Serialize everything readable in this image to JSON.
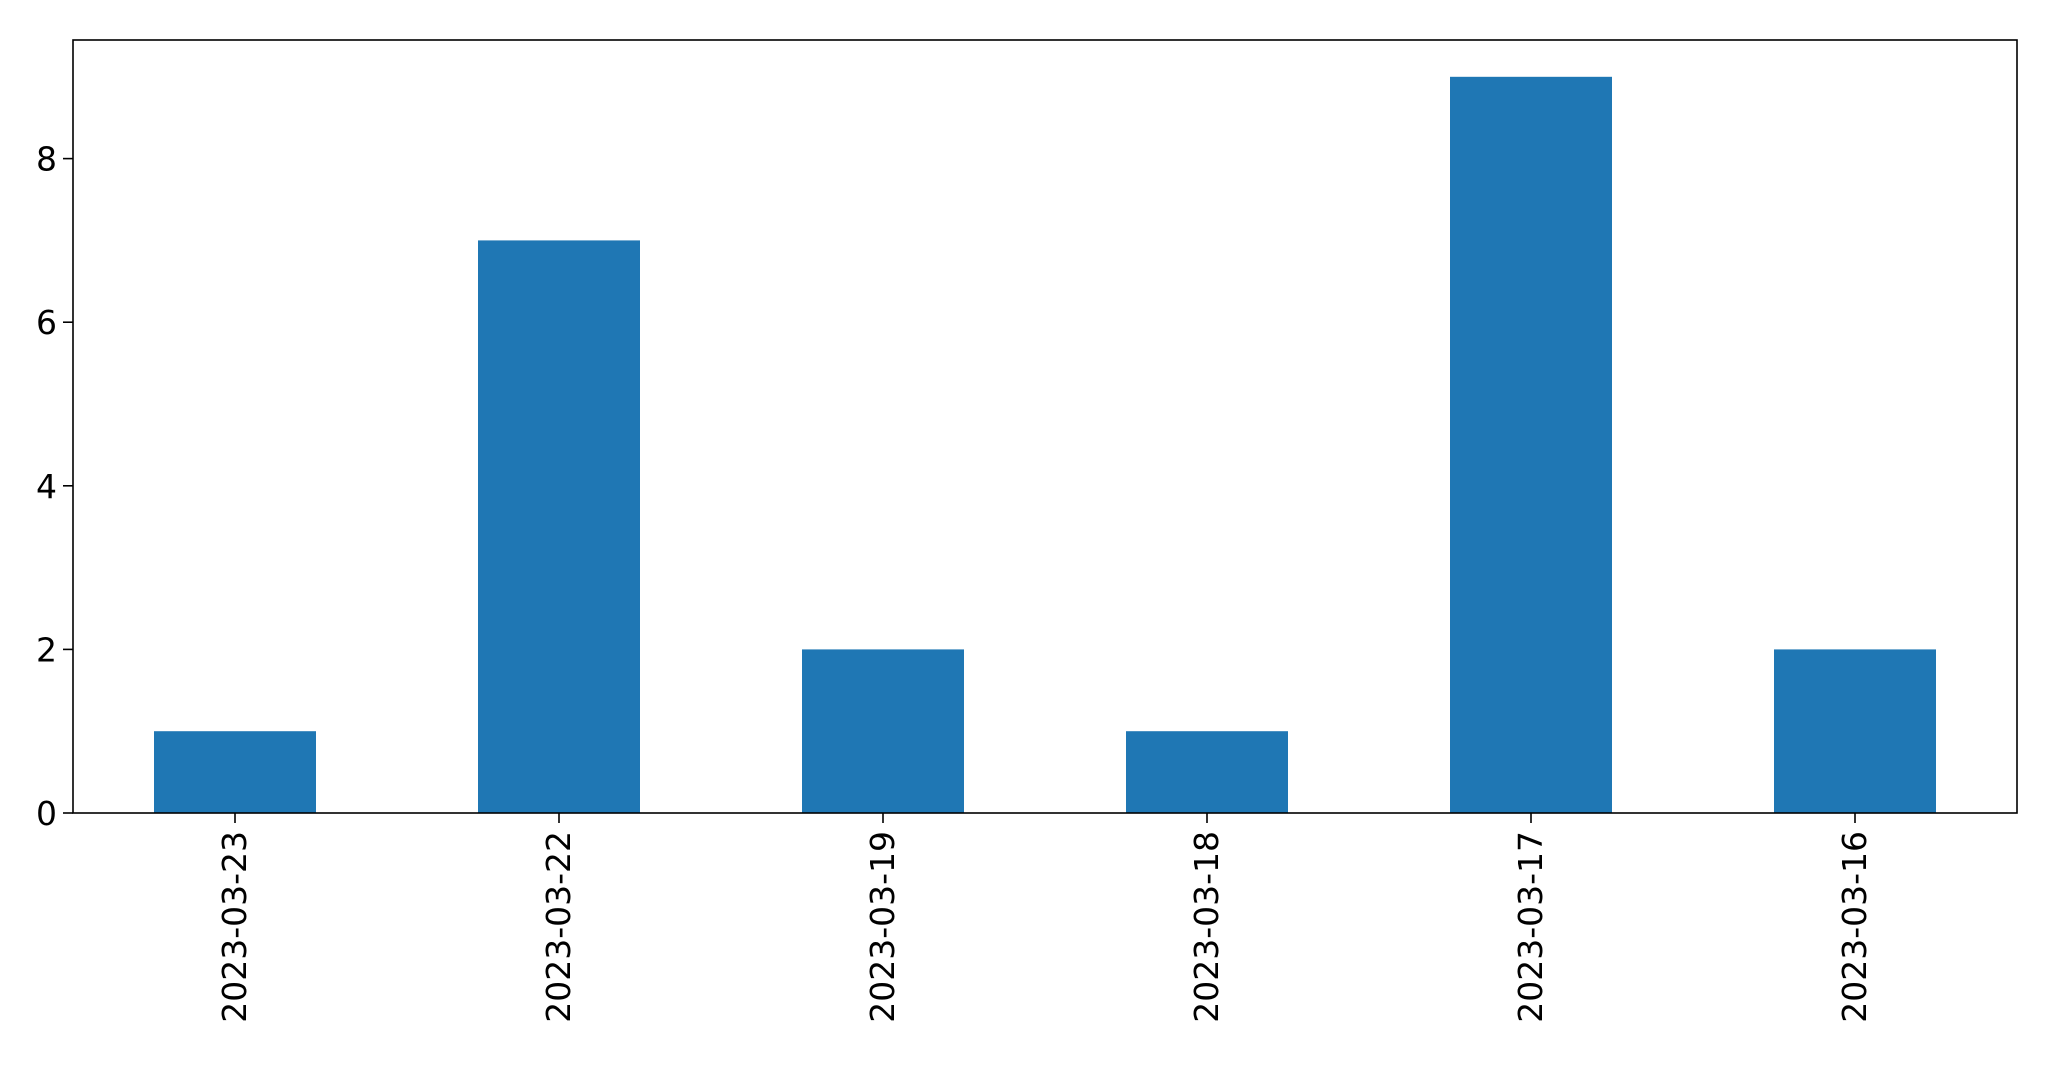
{
  "chart_data": {
    "type": "bar",
    "categories": [
      "2023-03-23",
      "2023-03-22",
      "2023-03-19",
      "2023-03-18",
      "2023-03-17",
      "2023-03-16"
    ],
    "values": [
      1,
      7,
      2,
      1,
      9,
      2
    ],
    "title": "",
    "xlabel": "",
    "ylabel": "",
    "ylim": [
      0,
      9.45
    ],
    "yticks": [
      "0",
      "2",
      "4",
      "6",
      "8"
    ],
    "grid": false,
    "legend": "none",
    "bar_color": "#1f77b4"
  }
}
